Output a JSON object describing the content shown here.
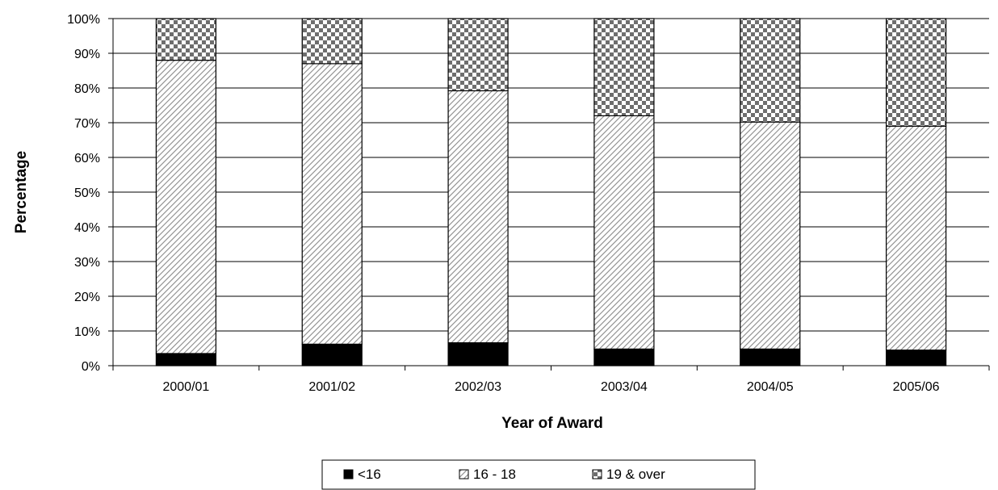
{
  "chart_data": {
    "type": "bar",
    "stacked": true,
    "normalized": true,
    "title": "",
    "xlabel": "Year of Award",
    "ylabel": "Percentage",
    "ylim": [
      0,
      100
    ],
    "yticks": [
      "0%",
      "10%",
      "20%",
      "30%",
      "40%",
      "50%",
      "60%",
      "70%",
      "80%",
      "90%",
      "100%"
    ],
    "categories": [
      "2000/01",
      "2001/02",
      "2002/03",
      "2003/04",
      "2004/05",
      "2005/06"
    ],
    "series": [
      {
        "name": "<16",
        "values": [
          3.5,
          6.2,
          6.6,
          4.8,
          4.8,
          4.5
        ],
        "color": "#000000",
        "pattern": "solid"
      },
      {
        "name": "16 - 18",
        "values": [
          84.5,
          80.8,
          72.6,
          67.2,
          65.4,
          64.5
        ],
        "color": "#9a9a9a",
        "pattern": "diagonal-hatch"
      },
      {
        "name": "19 & over",
        "values": [
          12.0,
          13.0,
          20.8,
          28.0,
          29.8,
          31.0
        ],
        "color": "#7a7a7a",
        "pattern": "checkerboard"
      }
    ],
    "grid": true,
    "legend": "bottom"
  }
}
